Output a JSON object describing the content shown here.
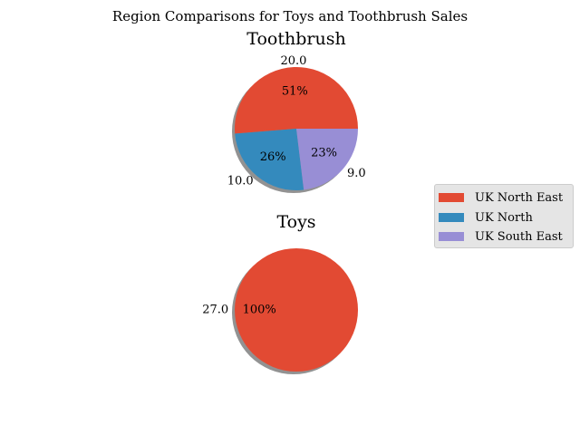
{
  "figure": {
    "title": "Region Comparisons for Toys and Toothbrush Sales"
  },
  "legend": {
    "placement": "right",
    "items": [
      {
        "label": "UK North East",
        "color": "#E24A33"
      },
      {
        "label": "UK North",
        "color": "#348ABD"
      },
      {
        "label": "UK South East",
        "color": "#988ED5"
      }
    ]
  },
  "chart_data": [
    {
      "type": "pie",
      "title": "Toothbrush",
      "slices": [
        {
          "label": "UK North East",
          "value": 20.0,
          "value_label": "20.0",
          "pct_label": "51%",
          "color": "#E24A33"
        },
        {
          "label": "UK North",
          "value": 10.0,
          "value_label": "10.0",
          "pct_label": "26%",
          "color": "#348ABD"
        },
        {
          "label": "UK South East",
          "value": 9.0,
          "value_label": "9.0",
          "pct_label": "23%",
          "color": "#988ED5"
        }
      ]
    },
    {
      "type": "pie",
      "title": "Toys",
      "slices": [
        {
          "label": "UK North East",
          "value": 27.0,
          "value_label": "27.0",
          "pct_label": "100%",
          "color": "#E24A33"
        }
      ]
    }
  ]
}
